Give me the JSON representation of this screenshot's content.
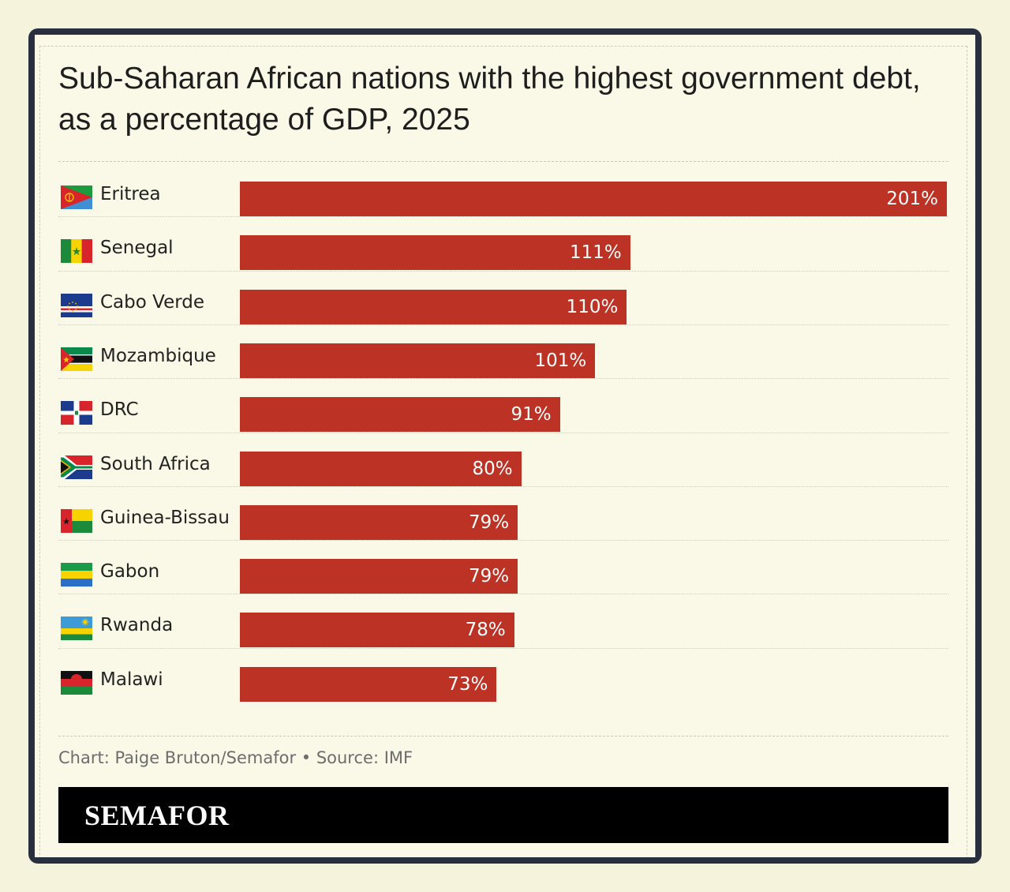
{
  "title": "Sub-Saharan African nations with the highest government debt, as a percentage of GDP, 2025",
  "footer": {
    "source": "Chart: Paige Bruton/Semafor • Source: IMF",
    "brand": "SEMAFOR"
  },
  "colors": {
    "bar": "#bc3224",
    "background": "#faf8e6",
    "frame": "#283040",
    "brand_bar": "#000000"
  },
  "chart_data": {
    "type": "bar",
    "orientation": "horizontal",
    "title": "Sub-Saharan African nations with the highest government debt, as a percentage of GDP, 2025",
    "categories": [
      "Eritrea",
      "Senegal",
      "Cabo Verde",
      "Mozambique",
      "DRC",
      "South Africa",
      "Guinea-Bissau",
      "Gabon",
      "Rwanda",
      "Malawi"
    ],
    "values": [
      201,
      111,
      110,
      101,
      91,
      80,
      79,
      79,
      78,
      73
    ],
    "value_labels": [
      "201%",
      "111%",
      "110%",
      "101%",
      "91%",
      "80%",
      "79%",
      "79%",
      "78%",
      "73%"
    ],
    "flags": [
      "eritrea-flag-icon",
      "senegal-flag-icon",
      "cabo-verde-flag-icon",
      "mozambique-flag-icon",
      "drc-flag-icon",
      "south-africa-flag-icon",
      "guinea-bissau-flag-icon",
      "gabon-flag-icon",
      "rwanda-flag-icon",
      "malawi-flag-icon"
    ],
    "unit": "%",
    "xlim": [
      0,
      201
    ],
    "grid": false,
    "legend": "none"
  }
}
